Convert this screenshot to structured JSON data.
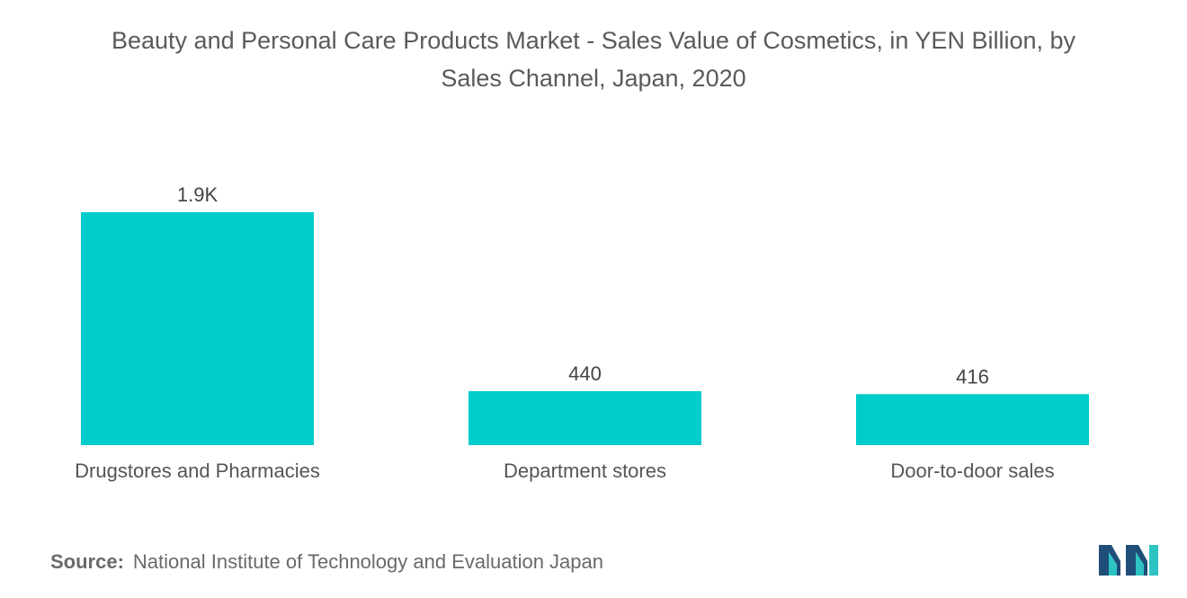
{
  "chart_data": {
    "type": "bar",
    "title_line1": "Beauty and Personal Care Products Market - Sales Value of Cosmetics, in YEN Billion, by",
    "title_line2": "Sales Channel, Japan, 2020",
    "categories": [
      "Drugstores and Pharmacies",
      "Department stores",
      "Door-to-door sales"
    ],
    "values": [
      1900,
      440,
      416
    ],
    "data_labels": [
      "1.9K",
      "440",
      "416"
    ],
    "ylim": [
      0,
      1900
    ],
    "grid": false,
    "legend": "none",
    "bar_color": "#00cccc"
  },
  "source": {
    "label": "Source:",
    "text": "National Institute of Technology and Evaluation Japan"
  },
  "logo": {
    "icon": "mordor-intelligence-logo-icon",
    "colors": [
      "#1f4e79",
      "#2ec4c4"
    ]
  }
}
